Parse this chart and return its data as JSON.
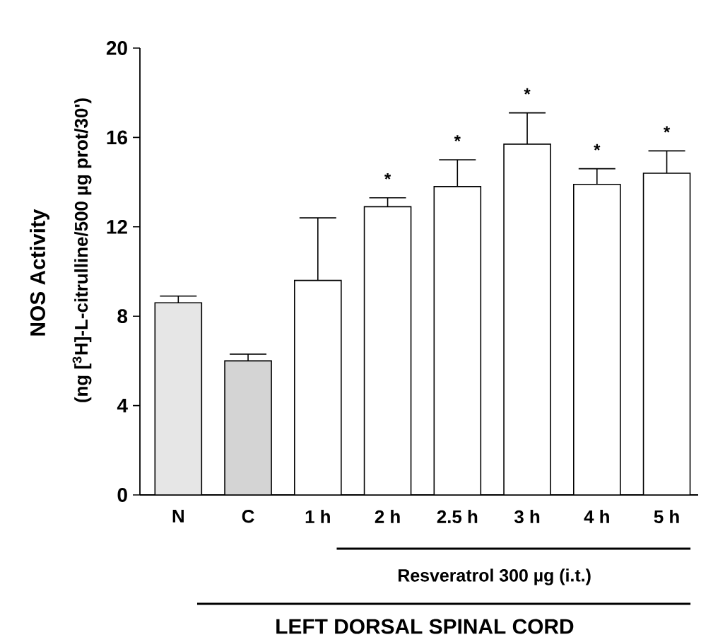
{
  "chart_data": {
    "type": "bar",
    "ylabel": "NOS Activity",
    "xlabel": "LEFT DORSAL SPINAL CORD",
    "categories": [
      "N",
      "C",
      "1 h",
      "2 h",
      "2.5 h",
      "3 h",
      "4 h",
      "5 h"
    ],
    "values": [
      8.6,
      6.0,
      9.6,
      12.9,
      13.8,
      15.7,
      13.9,
      14.4
    ],
    "errors": [
      0.3,
      0.3,
      2.8,
      0.4,
      1.2,
      1.4,
      0.7,
      1.0
    ],
    "colors": [
      "#e6e6e6",
      "#d4d4d4",
      "#ffffff",
      "#ffffff",
      "#ffffff",
      "#ffffff",
      "#ffffff",
      "#ffffff"
    ],
    "ylim": [
      0,
      20
    ],
    "yticks": [
      0,
      4,
      8,
      12,
      16,
      20
    ],
    "value_labels": [
      null,
      null,
      null,
      "*",
      "*",
      "*",
      "*",
      "*"
    ],
    "annotations": [
      "(ng [$^{3}$H]-L-citrulline/500 µg prot/30')",
      "Resveratrol 300 µg  (i.t.)"
    ]
  }
}
